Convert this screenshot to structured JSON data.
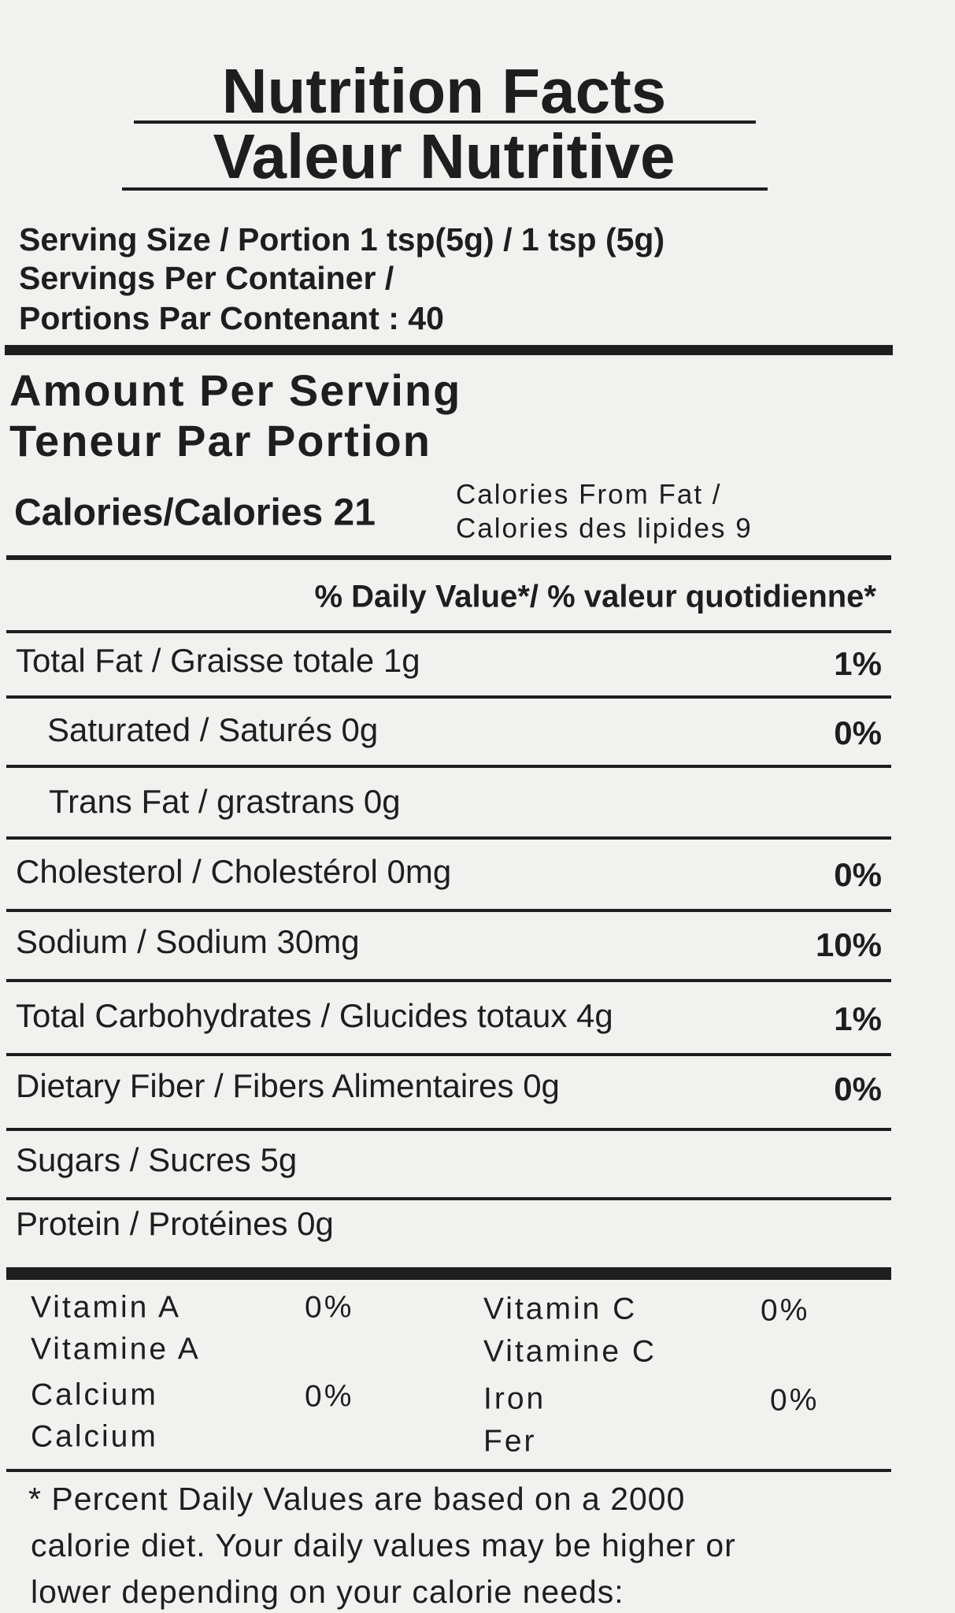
{
  "header": {
    "title_en": "Nutrition Facts",
    "title_fr": "Valeur Nutritive"
  },
  "serving": {
    "size": "Serving Size / Portion 1 tsp(5g) / 1 tsp (5g)",
    "per_container_en": "Servings Per Container /",
    "per_container_fr": "Portions Par Contenant : 40"
  },
  "amount": {
    "en": "Amount Per Serving",
    "fr": "Teneur Par Portion"
  },
  "calories": {
    "main": "Calories/Calories 21",
    "from_fat_en": "Calories From Fat /",
    "from_fat_fr": "Calories des lipides 9"
  },
  "daily_value_header": "% Daily Value*/ % valeur quotidienne*",
  "nutrients": [
    {
      "label": "Total Fat / Graisse totale 1g",
      "percent": "1%"
    },
    {
      "label": "Saturated / Saturés 0g",
      "percent": "0%"
    },
    {
      "label": "Trans Fat / grastrans 0g"
    },
    {
      "label": "Cholesterol / Cholestérol 0mg",
      "percent": "0%"
    },
    {
      "label": "Sodium / Sodium 30mg",
      "percent": "10%"
    },
    {
      "label": "Total Carbohydrates / Glucides totaux 4g",
      "percent": "1%"
    },
    {
      "label": "Dietary Fiber / Fibers Alimentaires 0g",
      "percent": "0%"
    },
    {
      "label": "Sugars / Sucres 5g"
    },
    {
      "label": "Protein / Protéines 0g"
    }
  ],
  "vitamins": [
    {
      "en": "Vitamin A",
      "fr": "Vitamine A",
      "percent": "0%"
    },
    {
      "en": "Vitamin C",
      "fr": "Vitamine C",
      "percent": "0%"
    },
    {
      "en": "Calcium",
      "fr": "Calcium",
      "percent": "0%"
    },
    {
      "en": "Iron",
      "fr": "Fer",
      "percent": "0%"
    }
  ],
  "footnote": [
    "* Percent Daily Values are based on a 2000",
    "calorie diet. Your daily values may be higher or",
    "lower depending on your calorie needs:"
  ]
}
